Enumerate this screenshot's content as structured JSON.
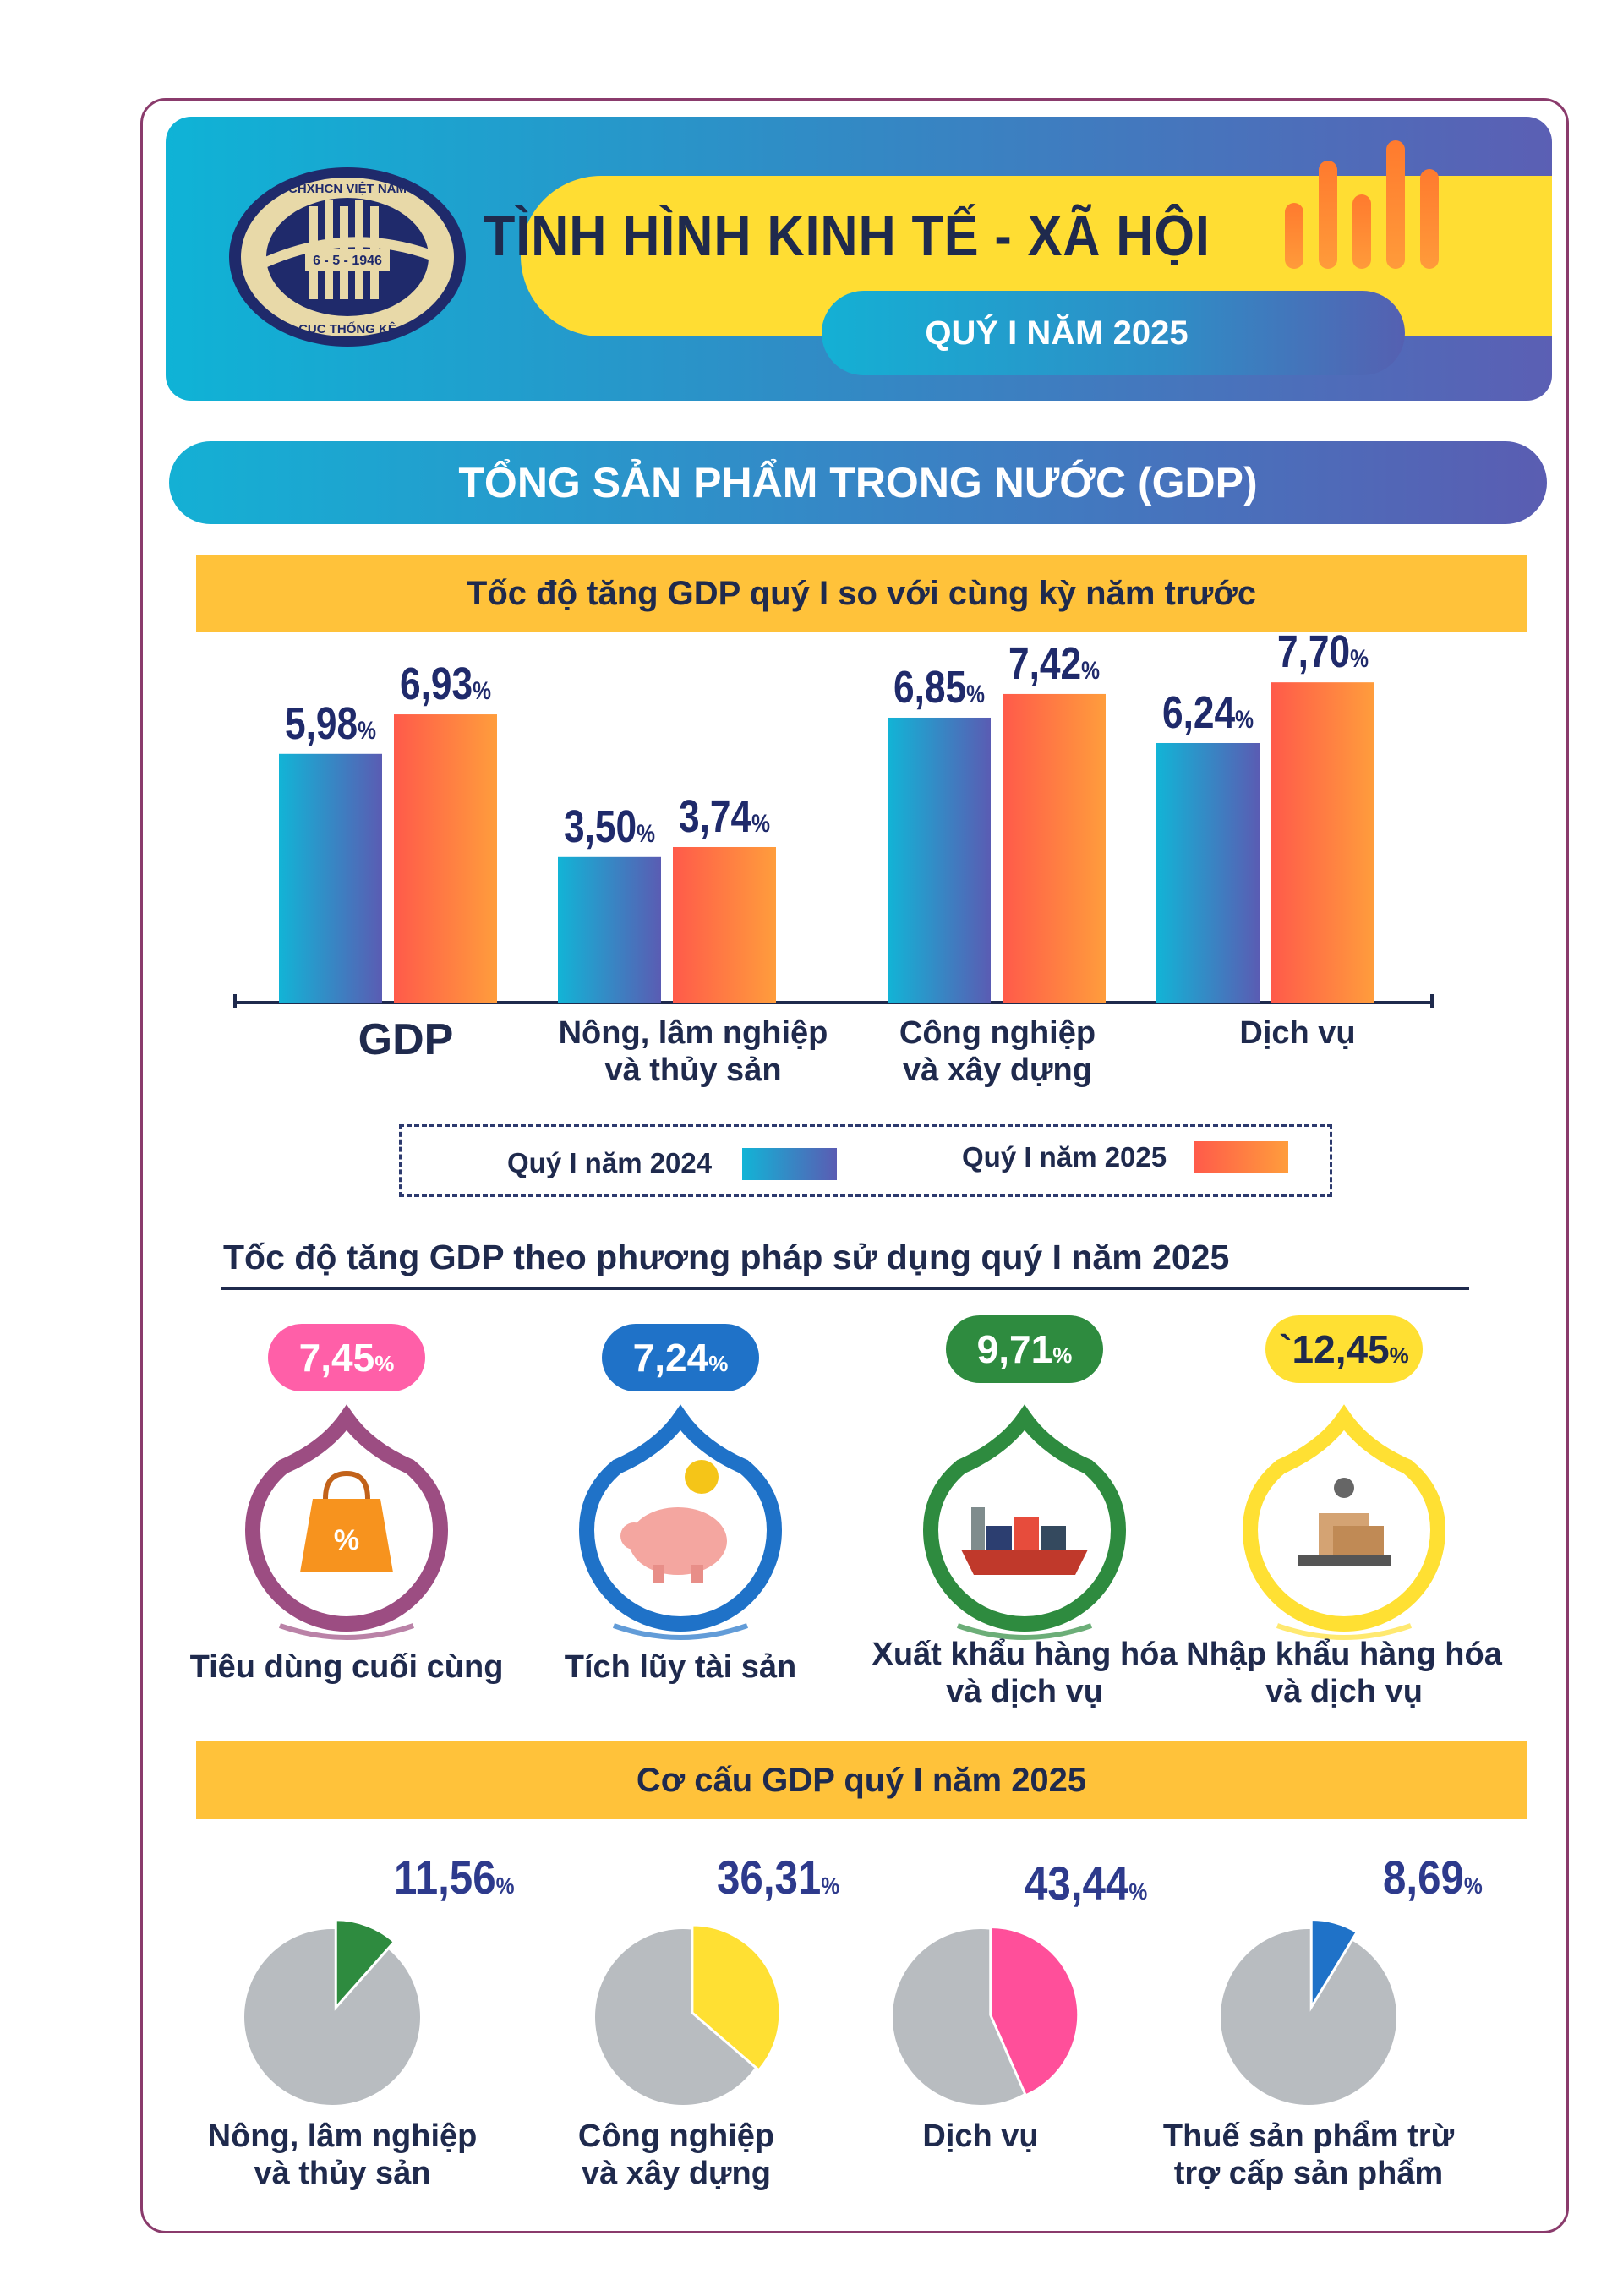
{
  "header": {
    "title": "TÌNH HÌNH KINH TẾ - XÃ HỘI",
    "quarter": "QUÝ I NĂM 2025",
    "logo": {
      "top_text": "CHXHCN VIỆT NAM",
      "date": "6 - 5 - 1946",
      "bottom_text": "CỤC THỐNG KÊ"
    }
  },
  "section_title": "TỔNG SẢN PHẨM TRONG NƯỚC (GDP)",
  "growth_chart": {
    "heading": "Tốc độ tăng GDP quý I so với cùng kỳ năm trước",
    "legend": [
      "Quý I năm 2024",
      "Quý I năm 2025"
    ]
  },
  "chart_data": [
    {
      "type": "bar",
      "title": "Tốc độ tăng GDP quý I so với cùng kỳ năm trước",
      "categories": [
        "GDP",
        "Nông, lâm nghiệp\nvà thủy sản",
        "Công nghiệp\nvà xây dựng",
        "Dịch vụ"
      ],
      "series": [
        {
          "name": "Quý I năm 2024",
          "values": [
            5.98,
            3.5,
            6.85,
            6.24
          ],
          "labels": [
            "5,98",
            "3,50",
            "6,85",
            "6,24"
          ],
          "color": "#1fb0d8"
        },
        {
          "name": "Quý I năm 2025",
          "values": [
            6.93,
            3.74,
            7.42,
            7.7
          ],
          "labels": [
            "6,93",
            "3,74",
            "7,42",
            "7,70"
          ],
          "color": "#ff5e4a"
        }
      ],
      "unit": "%",
      "ylim": [
        0,
        8
      ],
      "grid": false,
      "legend_position": "bottom"
    },
    {
      "type": "pie",
      "title": "Cơ cấu GDP quý I năm 2025",
      "categories": [
        "Nông, lâm nghiệp\nvà thủy sản",
        "Công nghiệp\nvà xây dựng",
        "Dịch vụ",
        "Thuế sản phẩm trừ\ntrợ cấp sản phẩm"
      ],
      "values": [
        11.56,
        36.31,
        43.44,
        8.69
      ],
      "labels": [
        "11,56",
        "36,31",
        "43,44",
        "8,69"
      ],
      "colors": [
        "#2e8b3f",
        "#ffe033",
        "#ff4f9a",
        "#1f72c8"
      ],
      "unit": "%"
    }
  ],
  "usage": {
    "heading": "Tốc độ tăng GDP theo phương pháp sử dụng quý I năm 2025",
    "items": [
      {
        "value": "7,45",
        "unit": "%",
        "label": "Tiêu dùng cuối cùng",
        "color": "#ff5fa8",
        "ring": "#9c4d82",
        "icon": "shopping-bag-icon"
      },
      {
        "value": "7,24",
        "unit": "%",
        "label": "Tích lũy tài sản",
        "color": "#1f72c8",
        "ring": "#1f72c8",
        "icon": "piggy-bank-icon"
      },
      {
        "value": "9,71",
        "unit": "%",
        "label": "Xuất khẩu hàng hóa\nvà dịch vụ",
        "color": "#2e8b3f",
        "ring": "#2e8b3f",
        "icon": "cargo-ship-icon"
      },
      {
        "value": "`12,45",
        "unit": "%",
        "label": "Nhập khẩu hàng hóa\nvà dịch vụ",
        "color": "#ffe033",
        "ring": "#ffe033",
        "icon": "cargo-scale-icon"
      }
    ]
  },
  "structure": {
    "heading": "Cơ cấu GDP quý I năm 2025"
  }
}
